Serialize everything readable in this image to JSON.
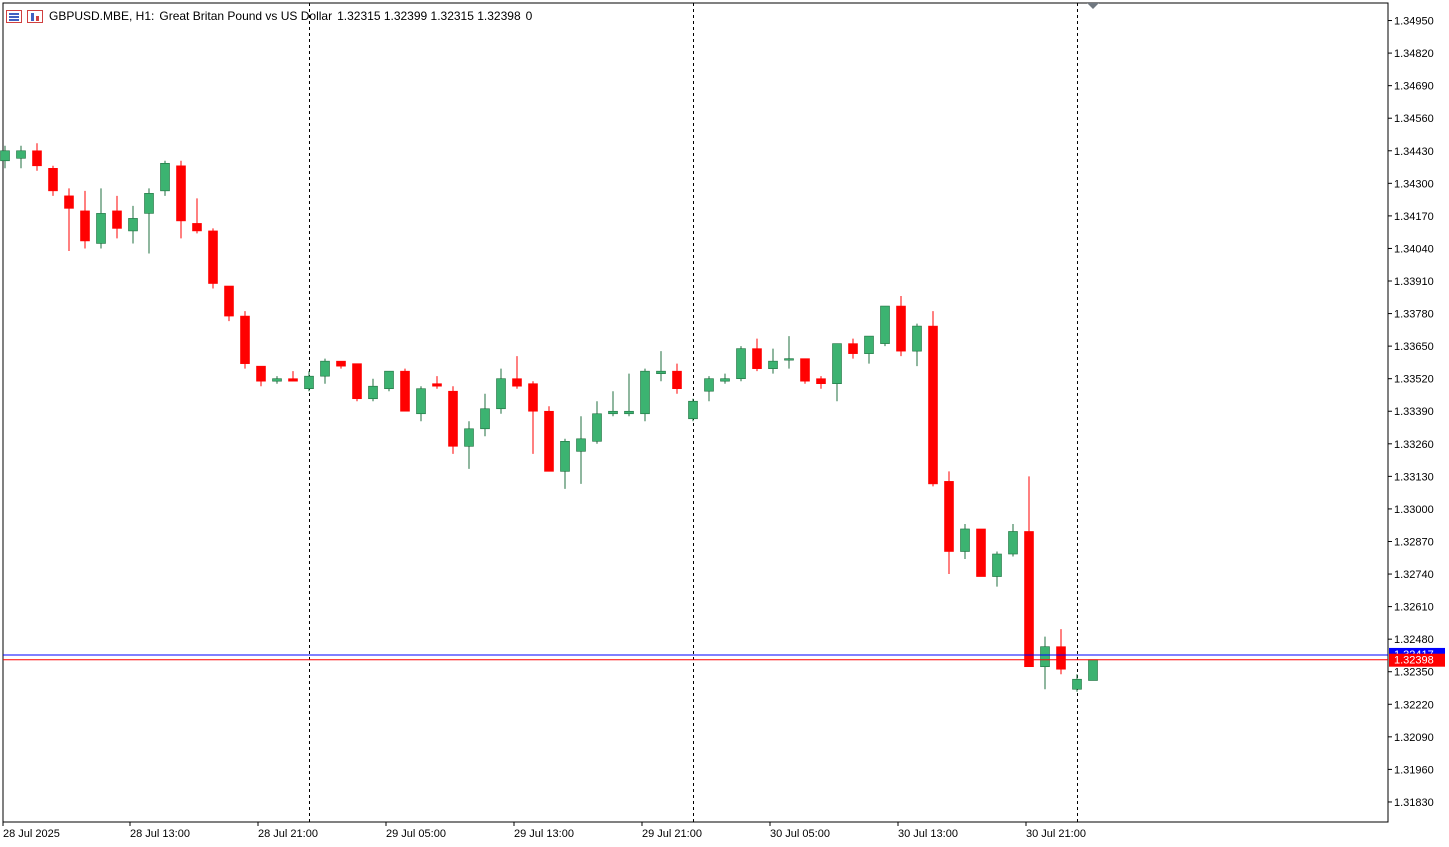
{
  "header": {
    "symbol": "GBPUSD.MBE, H1:",
    "description": "Great Britan Pound vs US Dollar",
    "ohlc": "1.32315 1.32399 1.32315 1.32398",
    "volume": "0"
  },
  "price_labels": {
    "bid": "1.32398",
    "ask": "1.32417"
  },
  "colors": {
    "bull": "#3cb371",
    "bear": "#ff0000",
    "bid_line": "#ff0000",
    "ask_line": "#0000ff",
    "grid": "#000000"
  },
  "chart_data": {
    "type": "candlestick",
    "symbol": "GBPUSD.MBE",
    "timeframe": "H1",
    "ylim": [
      1.3175,
      1.3502
    ],
    "y_ticks": [
      "1.34950",
      "1.34820",
      "1.34690",
      "1.34560",
      "1.34430",
      "1.34300",
      "1.34170",
      "1.34040",
      "1.33910",
      "1.33780",
      "1.33650",
      "1.33520",
      "1.33390",
      "1.33260",
      "1.33130",
      "1.33000",
      "1.32870",
      "1.32740",
      "1.32610",
      "1.32480",
      "1.32350",
      "1.32220",
      "1.32090",
      "1.31960",
      "1.31830"
    ],
    "x_labels": [
      {
        "text": "28 Jul 2025",
        "bar": 0
      },
      {
        "text": "28 Jul 13:00",
        "bar": 8
      },
      {
        "text": "28 Jul 21:00",
        "bar": 16
      },
      {
        "text": "29 Jul 05:00",
        "bar": 24
      },
      {
        "text": "29 Jul 13:00",
        "bar": 32
      },
      {
        "text": "29 Jul 21:00",
        "bar": 40
      },
      {
        "text": "30 Jul 05:00",
        "bar": 48
      },
      {
        "text": "30 Jul 13:00",
        "bar": 56
      },
      {
        "text": "30 Jul 21:00",
        "bar": 64
      }
    ],
    "day_separators": [
      19,
      43,
      67
    ],
    "bid": 1.32398,
    "ask": 1.32417,
    "candles": [
      {
        "o": 1.3439,
        "h": 1.3445,
        "l": 1.3436,
        "c": 1.3443
      },
      {
        "o": 1.344,
        "h": 1.3445,
        "l": 1.3436,
        "c": 1.3443
      },
      {
        "o": 1.3443,
        "h": 1.3446,
        "l": 1.3435,
        "c": 1.3437
      },
      {
        "o": 1.3436,
        "h": 1.3437,
        "l": 1.3425,
        "c": 1.3427
      },
      {
        "o": 1.3425,
        "h": 1.3428,
        "l": 1.3403,
        "c": 1.342
      },
      {
        "o": 1.3419,
        "h": 1.3427,
        "l": 1.3404,
        "c": 1.3407
      },
      {
        "o": 1.3406,
        "h": 1.3428,
        "l": 1.3404,
        "c": 1.3418
      },
      {
        "o": 1.3419,
        "h": 1.3425,
        "l": 1.3408,
        "c": 1.3412
      },
      {
        "o": 1.3411,
        "h": 1.3421,
        "l": 1.3406,
        "c": 1.3416
      },
      {
        "o": 1.3418,
        "h": 1.3428,
        "l": 1.3402,
        "c": 1.3426
      },
      {
        "o": 1.3427,
        "h": 1.3439,
        "l": 1.3425,
        "c": 1.3438
      },
      {
        "o": 1.3437,
        "h": 1.3439,
        "l": 1.3408,
        "c": 1.3415
      },
      {
        "o": 1.3414,
        "h": 1.3424,
        "l": 1.341,
        "c": 1.3411
      },
      {
        "o": 1.3411,
        "h": 1.3412,
        "l": 1.3388,
        "c": 1.339
      },
      {
        "o": 1.3389,
        "h": 1.3389,
        "l": 1.3375,
        "c": 1.3377
      },
      {
        "o": 1.3377,
        "h": 1.3379,
        "l": 1.3356,
        "c": 1.3358
      },
      {
        "o": 1.3357,
        "h": 1.3357,
        "l": 1.3349,
        "c": 1.3351
      },
      {
        "o": 1.3351,
        "h": 1.3353,
        "l": 1.335,
        "c": 1.3352
      },
      {
        "o": 1.3352,
        "h": 1.3355,
        "l": 1.3351,
        "c": 1.3351
      },
      {
        "o": 1.3348,
        "h": 1.3355,
        "l": 1.3347,
        "c": 1.3353
      },
      {
        "o": 1.3353,
        "h": 1.336,
        "l": 1.335,
        "c": 1.3359
      },
      {
        "o": 1.3359,
        "h": 1.3359,
        "l": 1.3356,
        "c": 1.3357
      },
      {
        "o": 1.3358,
        "h": 1.3358,
        "l": 1.3343,
        "c": 1.3344
      },
      {
        "o": 1.3344,
        "h": 1.3352,
        "l": 1.3343,
        "c": 1.3349
      },
      {
        "o": 1.3348,
        "h": 1.3355,
        "l": 1.3347,
        "c": 1.3355
      },
      {
        "o": 1.3355,
        "h": 1.3356,
        "l": 1.3339,
        "c": 1.3339
      },
      {
        "o": 1.3338,
        "h": 1.3349,
        "l": 1.3335,
        "c": 1.3348
      },
      {
        "o": 1.335,
        "h": 1.3353,
        "l": 1.3348,
        "c": 1.3349
      },
      {
        "o": 1.3347,
        "h": 1.3349,
        "l": 1.3322,
        "c": 1.3325
      },
      {
        "o": 1.3325,
        "h": 1.3335,
        "l": 1.3316,
        "c": 1.3332
      },
      {
        "o": 1.3332,
        "h": 1.3346,
        "l": 1.3329,
        "c": 1.334
      },
      {
        "o": 1.334,
        "h": 1.3356,
        "l": 1.3338,
        "c": 1.3352
      },
      {
        "o": 1.3352,
        "h": 1.3361,
        "l": 1.3348,
        "c": 1.3349
      },
      {
        "o": 1.335,
        "h": 1.3351,
        "l": 1.3322,
        "c": 1.3339
      },
      {
        "o": 1.3339,
        "h": 1.3341,
        "l": 1.3315,
        "c": 1.3315
      },
      {
        "o": 1.3315,
        "h": 1.3328,
        "l": 1.3308,
        "c": 1.3327
      },
      {
        "o": 1.3323,
        "h": 1.3337,
        "l": 1.331,
        "c": 1.3328
      },
      {
        "o": 1.3327,
        "h": 1.3343,
        "l": 1.3326,
        "c": 1.3338
      },
      {
        "o": 1.3338,
        "h": 1.3347,
        "l": 1.3337,
        "c": 1.3339
      },
      {
        "o": 1.3338,
        "h": 1.3354,
        "l": 1.3337,
        "c": 1.3339
      },
      {
        "o": 1.3338,
        "h": 1.3356,
        "l": 1.3335,
        "c": 1.3355
      },
      {
        "o": 1.3354,
        "h": 1.3363,
        "l": 1.3351,
        "c": 1.3355
      },
      {
        "o": 1.3355,
        "h": 1.3358,
        "l": 1.3346,
        "c": 1.3348
      },
      {
        "o": 1.3336,
        "h": 1.3344,
        "l": 1.3335,
        "c": 1.3343
      },
      {
        "o": 1.3347,
        "h": 1.3353,
        "l": 1.3343,
        "c": 1.3352
      },
      {
        "o": 1.3351,
        "h": 1.3354,
        "l": 1.335,
        "c": 1.3352
      },
      {
        "o": 1.3352,
        "h": 1.3365,
        "l": 1.3351,
        "c": 1.3364
      },
      {
        "o": 1.3364,
        "h": 1.3368,
        "l": 1.3355,
        "c": 1.3356
      },
      {
        "o": 1.3356,
        "h": 1.3364,
        "l": 1.3354,
        "c": 1.3359
      },
      {
        "o": 1.336,
        "h": 1.3369,
        "l": 1.3356,
        "c": 1.336
      },
      {
        "o": 1.336,
        "h": 1.336,
        "l": 1.335,
        "c": 1.3351
      },
      {
        "o": 1.3352,
        "h": 1.3353,
        "l": 1.3348,
        "c": 1.335
      },
      {
        "o": 1.335,
        "h": 1.3366,
        "l": 1.3343,
        "c": 1.3366
      },
      {
        "o": 1.3366,
        "h": 1.3368,
        "l": 1.336,
        "c": 1.3362
      },
      {
        "o": 1.3362,
        "h": 1.3369,
        "l": 1.3358,
        "c": 1.3369
      },
      {
        "o": 1.3366,
        "h": 1.3381,
        "l": 1.3365,
        "c": 1.3381
      },
      {
        "o": 1.3381,
        "h": 1.3385,
        "l": 1.3361,
        "c": 1.3363
      },
      {
        "o": 1.3363,
        "h": 1.3374,
        "l": 1.3357,
        "c": 1.3373
      },
      {
        "o": 1.3373,
        "h": 1.3379,
        "l": 1.3309,
        "c": 1.331
      },
      {
        "o": 1.3311,
        "h": 1.3315,
        "l": 1.3274,
        "c": 1.3283
      },
      {
        "o": 1.3283,
        "h": 1.3294,
        "l": 1.328,
        "c": 1.3292
      },
      {
        "o": 1.3292,
        "h": 1.3292,
        "l": 1.3273,
        "c": 1.3273
      },
      {
        "o": 1.3273,
        "h": 1.3283,
        "l": 1.3269,
        "c": 1.3282
      },
      {
        "o": 1.3282,
        "h": 1.3294,
        "l": 1.3281,
        "c": 1.3291
      },
      {
        "o": 1.3291,
        "h": 1.3313,
        "l": 1.3237,
        "c": 1.3237
      },
      {
        "o": 1.3237,
        "h": 1.3249,
        "l": 1.3228,
        "c": 1.3245
      },
      {
        "o": 1.3245,
        "h": 1.3252,
        "l": 1.3234,
        "c": 1.3236
      },
      {
        "o": 1.3228,
        "h": 1.3234,
        "l": 1.3227,
        "c": 1.3232
      },
      {
        "o": 1.32315,
        "h": 1.32399,
        "l": 1.32315,
        "c": 1.32398
      }
    ]
  }
}
